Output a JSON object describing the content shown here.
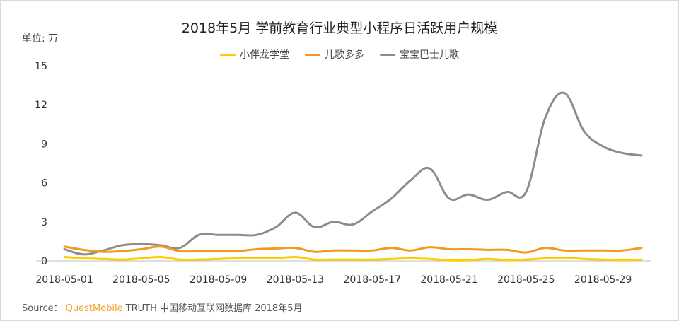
{
  "source": {
    "prefix": "Source：",
    "brand": "QuestMobile",
    "suffix": "TRUTH 中国移动互联网数据库 2018年5月"
  },
  "chart_data": {
    "type": "line",
    "title": "2018年5月 学前教育行业典型小程序日活跃用户规模",
    "unit_label": "单位: 万",
    "ylim": [
      0,
      15
    ],
    "yticks": [
      0,
      3,
      6,
      9,
      12,
      15
    ],
    "x": [
      "2018-05-01",
      "2018-05-02",
      "2018-05-03",
      "2018-05-04",
      "2018-05-05",
      "2018-05-06",
      "2018-05-07",
      "2018-05-08",
      "2018-05-09",
      "2018-05-10",
      "2018-05-11",
      "2018-05-12",
      "2018-05-13",
      "2018-05-14",
      "2018-05-15",
      "2018-05-16",
      "2018-05-17",
      "2018-05-18",
      "2018-05-19",
      "2018-05-20",
      "2018-05-21",
      "2018-05-22",
      "2018-05-23",
      "2018-05-24",
      "2018-05-25",
      "2018-05-26",
      "2018-05-27",
      "2018-05-28",
      "2018-05-29",
      "2018-05-30",
      "2018-05-31"
    ],
    "xtick_labels": [
      "2018-05-01",
      "2018-05-05",
      "2018-05-09",
      "2018-05-13",
      "2018-05-17",
      "2018-05-21",
      "2018-05-25",
      "2018-05-29"
    ],
    "grid": false,
    "legend_position": "top-center",
    "series": [
      {
        "name": "小伴龙学堂",
        "color": "#ffcc00",
        "values": [
          0.3,
          0.2,
          0.15,
          0.1,
          0.2,
          0.3,
          0.1,
          0.1,
          0.15,
          0.2,
          0.2,
          0.2,
          0.3,
          0.1,
          0.1,
          0.1,
          0.1,
          0.15,
          0.2,
          0.15,
          0.05,
          0.05,
          0.15,
          0.05,
          0.1,
          0.2,
          0.25,
          0.15,
          0.1,
          0.05,
          0.1
        ]
      },
      {
        "name": "儿歌多多",
        "color": "#f39a1e",
        "values": [
          1.1,
          0.85,
          0.7,
          0.75,
          0.9,
          1.1,
          0.75,
          0.75,
          0.75,
          0.75,
          0.9,
          0.95,
          1.0,
          0.7,
          0.8,
          0.8,
          0.8,
          1.0,
          0.8,
          1.05,
          0.9,
          0.9,
          0.85,
          0.85,
          0.65,
          1.0,
          0.8,
          0.8,
          0.8,
          0.8,
          1.0
        ]
      },
      {
        "name": "宝宝巴士儿歌",
        "color": "#8c8c8c",
        "values": [
          0.9,
          0.5,
          0.8,
          1.2,
          1.3,
          1.2,
          1.0,
          2.0,
          2.0,
          2.0,
          2.0,
          2.6,
          3.7,
          2.6,
          3.0,
          2.8,
          3.8,
          4.8,
          6.2,
          7.1,
          4.8,
          5.1,
          4.7,
          5.3,
          5.3,
          11.0,
          12.9,
          10.0,
          8.8,
          8.3,
          8.1
        ]
      }
    ]
  }
}
